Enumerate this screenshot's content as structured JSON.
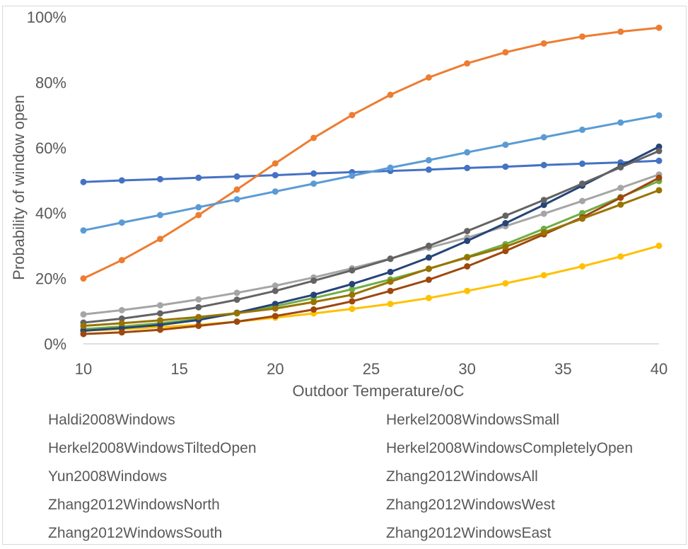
{
  "chart_data": {
    "type": "line",
    "title": "",
    "xlabel": "Outdoor Temperature/oC",
    "ylabel": "Probability of window open",
    "xlim": [
      10,
      40
    ],
    "ylim": [
      0,
      1
    ],
    "x_ticks": [
      "10",
      "15",
      "20",
      "25",
      "30",
      "35",
      "40"
    ],
    "y_ticks": [
      "0%",
      "20%",
      "40%",
      "60%",
      "80%",
      "100%"
    ],
    "grid": false,
    "legend_position": "bottom",
    "x": [
      10,
      12,
      14,
      16,
      18,
      20,
      22,
      24,
      26,
      28,
      30,
      32,
      34,
      36,
      38,
      40
    ],
    "series": [
      {
        "name": "Haldi2008Windows",
        "color": "#4472C4",
        "values": [
          0.495,
          0.5,
          0.504,
          0.508,
          0.512,
          0.516,
          0.521,
          0.525,
          0.529,
          0.533,
          0.538,
          0.542,
          0.547,
          0.551,
          0.555,
          0.56
        ]
      },
      {
        "name": "Herkel2008WindowsSmall",
        "color": "#ED7D31",
        "values": [
          0.2,
          0.256,
          0.321,
          0.394,
          0.472,
          0.552,
          0.63,
          0.7,
          0.762,
          0.815,
          0.858,
          0.892,
          0.919,
          0.94,
          0.955,
          0.967
        ]
      },
      {
        "name": "Herkel2008WindowsTiltedOpen",
        "color": "#A5A5A5",
        "values": [
          0.09,
          0.103,
          0.118,
          0.136,
          0.156,
          0.178,
          0.203,
          0.231,
          0.261,
          0.294,
          0.325,
          0.36,
          0.398,
          0.437,
          0.477,
          0.518
        ]
      },
      {
        "name": "Herkel2008WindowsCompletelyOpen",
        "color": "#FFC000",
        "values": [
          0.04,
          0.045,
          0.051,
          0.058,
          0.068,
          0.08,
          0.093,
          0.107,
          0.122,
          0.14,
          0.162,
          0.185,
          0.21,
          0.237,
          0.267,
          0.3
        ]
      },
      {
        "name": "Yun2008Windows",
        "color": "#5B9BD5",
        "values": [
          0.347,
          0.371,
          0.394,
          0.418,
          0.442,
          0.466,
          0.49,
          0.514,
          0.539,
          0.562,
          0.586,
          0.609,
          0.632,
          0.655,
          0.677,
          0.699
        ]
      },
      {
        "name": "Zhang2012WindowsAll",
        "color": "#70AD47",
        "values": [
          0.045,
          0.053,
          0.063,
          0.076,
          0.093,
          0.115,
          0.14,
          0.167,
          0.197,
          0.229,
          0.266,
          0.305,
          0.352,
          0.4,
          0.449,
          0.498
        ]
      },
      {
        "name": "Zhang2012WindowsNorth",
        "color": "#264478",
        "values": [
          0.04,
          0.048,
          0.058,
          0.073,
          0.095,
          0.122,
          0.15,
          0.183,
          0.22,
          0.264,
          0.315,
          0.369,
          0.425,
          0.484,
          0.544,
          0.603
        ]
      },
      {
        "name": "Zhang2012WindowsWest",
        "color": "#9E480E",
        "values": [
          0.03,
          0.035,
          0.043,
          0.055,
          0.068,
          0.085,
          0.105,
          0.13,
          0.162,
          0.196,
          0.237,
          0.284,
          0.335,
          0.387,
          0.447,
          0.508
        ]
      },
      {
        "name": "Zhang2012WindowsSouth",
        "color": "#636363",
        "values": [
          0.065,
          0.077,
          0.093,
          0.112,
          0.135,
          0.162,
          0.193,
          0.225,
          0.26,
          0.3,
          0.345,
          0.392,
          0.44,
          0.49,
          0.54,
          0.59
        ]
      },
      {
        "name": "Zhang2012WindowsEast",
        "color": "#997300",
        "values": [
          0.055,
          0.063,
          0.072,
          0.082,
          0.094,
          0.108,
          0.128,
          0.15,
          0.19,
          0.23,
          0.264,
          0.297,
          0.341,
          0.383,
          0.426,
          0.47
        ]
      }
    ]
  }
}
